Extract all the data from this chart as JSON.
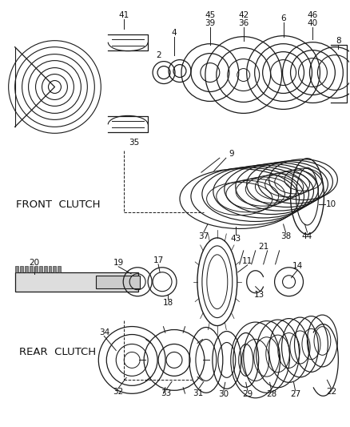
{
  "bg_color": "#ffffff",
  "line_color": "#1a1a1a",
  "text_color": "#111111",
  "front_clutch_label": "FRONT  CLUTCH",
  "rear_clutch_label": "REAR  CLUTCH",
  "figsize": [
    4.38,
    5.33
  ],
  "dpi": 100
}
